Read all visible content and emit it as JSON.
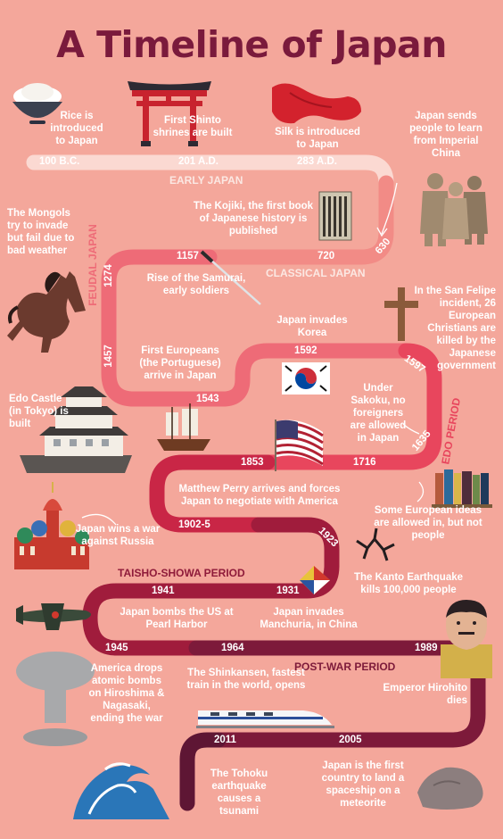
{
  "title": "A Timeline of Japan",
  "years": {
    "y100bc": "100 B.C.",
    "y201": "201 A.D.",
    "y283": "283 A.D.",
    "y630": "630",
    "y720": "720",
    "y1157": "1157",
    "y1274": "1274",
    "y1457": "1457",
    "y1543": "1543",
    "y1592": "1592",
    "y1597": "1597",
    "y1635": "1635",
    "y1716": "1716",
    "y1853": "1853",
    "y1902": "1902-5",
    "y1923": "1923",
    "y1941": "1941",
    "y1931": "1931",
    "y1945": "1945",
    "y1964": "1964",
    "y1989": "1989",
    "y2011": "2011",
    "y2005": "2005"
  },
  "periods": {
    "early": "EARLY JAPAN",
    "classical": "CLASSICAL JAPAN",
    "feudal": "FEUDAL JAPAN",
    "edo": "EDO PERIOD",
    "taisho": "TAISHO-SHOWA PERIOD",
    "postwar": "POST-WAR PERIOD"
  },
  "events": {
    "rice": "Rice is introduced to Japan",
    "shinto": "First Shinto shrines are built",
    "silk": "Silk is introduced to Japan",
    "imperial_china": "Japan sends people to learn from Imperial China",
    "kojiki": "The Kojiki, the first book of Japanese history is published",
    "mongols": "The Mongols try to invade but fail due to bad weather",
    "samurai": "Rise of the Samurai, early soldiers",
    "korea": "Japan invades Korea",
    "san_felipe": "In the San Felipe incident, 26 European Christians are killed by the Japanese government",
    "europeans": "First Europeans (the Portuguese) arrive in Japan",
    "sakoku": "Under Sakoku, no foreigners are allowed in Japan",
    "edo_castle": "Edo Castle (in Tokyo) is built",
    "perry": "Matthew Perry arrives and forces Japan to negotiate with America",
    "european_ideas": "Some European ideas are allowed in, but not people",
    "russia": "Japan wins a war against Russia",
    "kanto": "The Kanto Earthquake kills 100,000 people",
    "pearl_harbor": "Japan bombs the US at Pearl Harbor",
    "manchuria": "Japan invades Manchuria, in China",
    "atomic": "America drops atomic bombs on Hiroshima & Nagasaki, ending the war",
    "shinkansen": "The Shinkansen, fastest train in the world, opens",
    "hirohito": "Emperor Hirohito dies",
    "tohoku": "The Tohoku earthquake causes a tsunami",
    "meteorite": "Japan is the first country to land a spaceship on a meteorite"
  },
  "icons": [
    "rice-bowl",
    "torii-gate",
    "silk-cloth",
    "terracotta-warriors",
    "kojiki-book",
    "horse",
    "katana",
    "cross",
    "korean-flag",
    "edo-castle",
    "ship",
    "american-flag",
    "books",
    "st-basils-cathedral",
    "cracked-ground",
    "manchukuo-flag",
    "fighter-plane",
    "mushroom-cloud",
    "bullet-train",
    "emperor-portrait",
    "tsunami-wave",
    "meteorite"
  ],
  "colors": {
    "background": "#f4a79b",
    "title": "#7a1a3c",
    "road_early": "#fbd9d2",
    "road_classical": "#f28b86",
    "road_feudal": "#ee6b77",
    "road_edo": "#e8465d",
    "road_meiji": "#c92646",
    "road_taisho": "#a01c3c",
    "road_postwar": "#7d1a3a",
    "road_modern": "#5e1634"
  }
}
